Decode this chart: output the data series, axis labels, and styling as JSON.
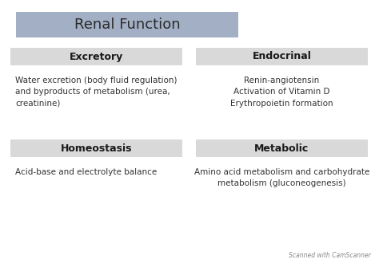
{
  "title": "Renal Function",
  "title_box_color": "#a2afc4",
  "header_box_color": "#d9d9d9",
  "fig_bg": "#ffffff",
  "sections": [
    {
      "header": "Excretory",
      "body": "Water excretion (body fluid regulation)\nand byproducts of metabolism (urea,\ncreatinine)",
      "col": 0,
      "row": 0
    },
    {
      "header": "Endocrinal",
      "body": "Renin-angiotensin\nActivation of Vitamin D\nErythropoietin formation",
      "col": 1,
      "row": 0
    },
    {
      "header": "Homeostasis",
      "body": "Acid-base and electrolyte balance",
      "col": 0,
      "row": 1
    },
    {
      "header": "Metabolic",
      "body": "Amino acid metabolism and carbohydrate\nmetabolism (gluconeogenesis)",
      "col": 1,
      "row": 1
    }
  ],
  "watermark": "Scanned with CamScanner",
  "title_fontsize": 13,
  "header_fontsize": 9,
  "body_fontsize": 7.5,
  "watermark_fontsize": 5.5
}
